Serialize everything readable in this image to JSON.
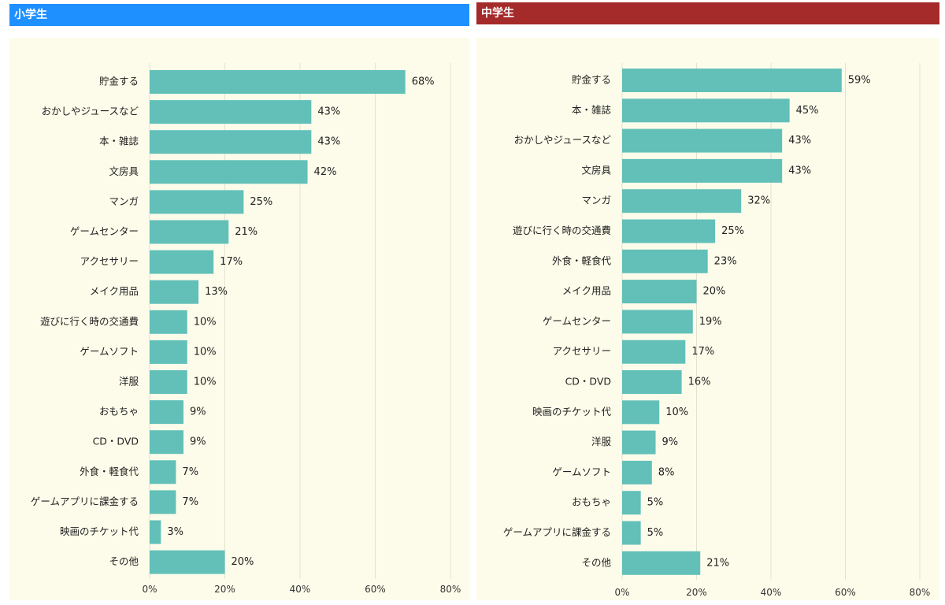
{
  "panels": [
    {
      "title": "小学生",
      "color": "#1e90ff"
    },
    {
      "title": "中学生",
      "color": "#a52a2a"
    }
  ],
  "chart_data": [
    {
      "type": "bar",
      "orientation": "horizontal",
      "title": "小学生",
      "categories": [
        "貯金する",
        "おかしやジュースなど",
        "本・雑誌",
        "文房具",
        "マンガ",
        "ゲームセンター",
        "アクセサリー",
        "メイク用品",
        "遊びに行く時の交通費",
        "ゲームソフト",
        "洋服",
        "おもちゃ",
        "CD・DVD",
        "外食・軽食代",
        "ゲームアプリに課金する",
        "映画のチケット代",
        "その他"
      ],
      "values": [
        68,
        43,
        43,
        42,
        25,
        21,
        17,
        13,
        10,
        10,
        10,
        9,
        9,
        7,
        7,
        3,
        20
      ],
      "value_labels": [
        "68%",
        "43%",
        "43%",
        "42%",
        "25%",
        "21%",
        "17%",
        "13%",
        "10%",
        "10%",
        "10%",
        "9%",
        "9%",
        "7%",
        "7%",
        "3%",
        "20%"
      ],
      "xticks": [
        "0%",
        "20%",
        "40%",
        "60%",
        "80%"
      ],
      "xlim": [
        0,
        80
      ],
      "grid": true,
      "bar_color": "#62c0b9"
    },
    {
      "type": "bar",
      "orientation": "horizontal",
      "title": "中学生",
      "categories": [
        "貯金する",
        "本・雑誌",
        "おかしやジュースなど",
        "文房具",
        "マンガ",
        "遊びに行く時の交通費",
        "外食・軽食代",
        "メイク用品",
        "ゲームセンター",
        "アクセサリー",
        "CD・DVD",
        "映画のチケット代",
        "洋服",
        "ゲームソフト",
        "おもちゃ",
        "ゲームアプリに課金する",
        "その他"
      ],
      "values": [
        59,
        45,
        43,
        43,
        32,
        25,
        23,
        20,
        19,
        17,
        16,
        10,
        9,
        8,
        5,
        5,
        21
      ],
      "value_labels": [
        "59%",
        "45%",
        "43%",
        "43%",
        "32%",
        "25%",
        "23%",
        "20%",
        "19%",
        "17%",
        "16%",
        "10%",
        "9%",
        "8%",
        "5%",
        "5%",
        "21%"
      ],
      "xticks": [
        "0%",
        "20%",
        "40%",
        "60%",
        "80%"
      ],
      "xlim": [
        0,
        80
      ],
      "grid": true,
      "bar_color": "#62c0b9"
    }
  ]
}
